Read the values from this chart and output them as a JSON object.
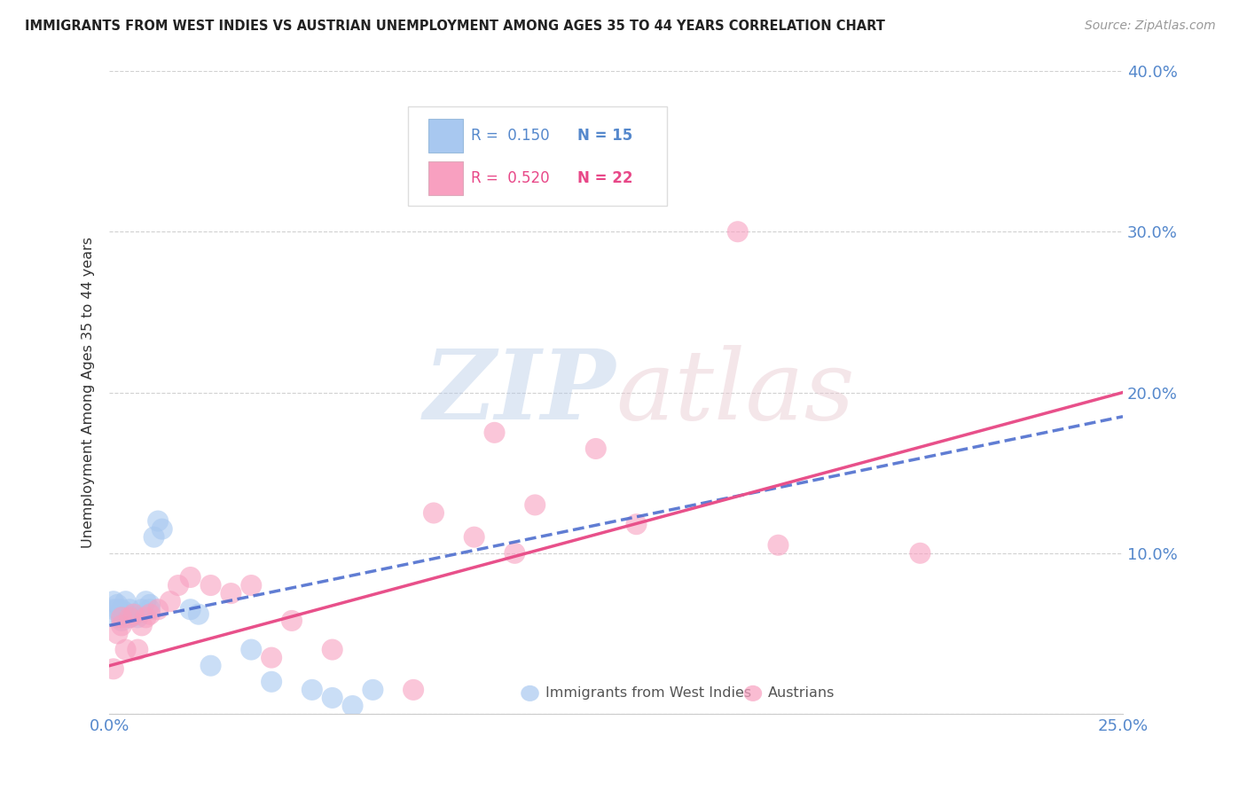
{
  "title": "IMMIGRANTS FROM WEST INDIES VS AUSTRIAN UNEMPLOYMENT AMONG AGES 35 TO 44 YEARS CORRELATION CHART",
  "source": "Source: ZipAtlas.com",
  "ylabel": "Unemployment Among Ages 35 to 44 years",
  "xlim": [
    0.0,
    0.25
  ],
  "ylim": [
    0.0,
    0.4
  ],
  "blue_color": "#a8c8f0",
  "pink_color": "#f8a0c0",
  "blue_line_color": "#4466cc",
  "pink_line_color": "#e8508a",
  "blue_x": [
    0.001,
    0.001,
    0.002,
    0.002,
    0.002,
    0.003,
    0.003,
    0.003,
    0.004,
    0.004,
    0.005,
    0.005,
    0.006,
    0.007,
    0.008,
    0.009,
    0.01,
    0.01,
    0.011,
    0.012,
    0.013,
    0.02,
    0.022,
    0.025,
    0.035,
    0.04,
    0.05,
    0.055,
    0.06,
    0.065
  ],
  "blue_y": [
    0.065,
    0.07,
    0.06,
    0.065,
    0.068,
    0.062,
    0.065,
    0.058,
    0.07,
    0.063,
    0.06,
    0.065,
    0.061,
    0.06,
    0.065,
    0.07,
    0.068,
    0.065,
    0.11,
    0.12,
    0.115,
    0.065,
    0.062,
    0.03,
    0.04,
    0.02,
    0.015,
    0.01,
    0.005,
    0.015
  ],
  "pink_x": [
    0.001,
    0.002,
    0.003,
    0.003,
    0.004,
    0.005,
    0.006,
    0.007,
    0.008,
    0.009,
    0.01,
    0.012,
    0.015,
    0.017,
    0.02,
    0.025,
    0.03,
    0.035,
    0.04,
    0.045,
    0.055,
    0.075,
    0.08,
    0.09,
    0.095,
    0.1,
    0.105,
    0.12,
    0.13,
    0.155,
    0.165,
    0.2
  ],
  "pink_y": [
    0.028,
    0.05,
    0.055,
    0.06,
    0.04,
    0.06,
    0.062,
    0.04,
    0.055,
    0.06,
    0.062,
    0.065,
    0.07,
    0.08,
    0.085,
    0.08,
    0.075,
    0.08,
    0.035,
    0.058,
    0.04,
    0.015,
    0.125,
    0.11,
    0.175,
    0.1,
    0.13,
    0.165,
    0.118,
    0.3,
    0.105,
    0.1
  ],
  "blue_line_x": [
    0.0,
    0.25
  ],
  "blue_line_y": [
    0.055,
    0.185
  ],
  "pink_line_x": [
    0.0,
    0.25
  ],
  "pink_line_y": [
    0.035,
    0.2
  ]
}
